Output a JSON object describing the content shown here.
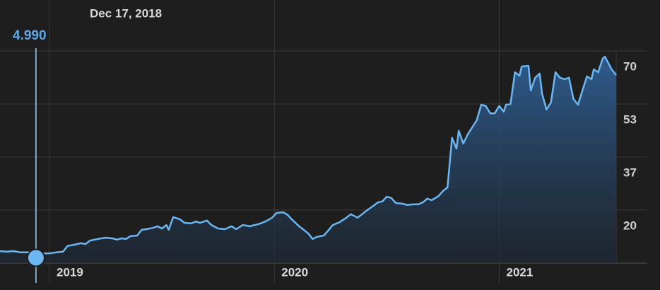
{
  "chart_data": {
    "type": "area-line",
    "selection": {
      "label": "Dec 17, 2018",
      "x": 2018.94,
      "value": 4.99,
      "value_label": "4.990"
    },
    "x": [
      2018.78,
      2018.81,
      2018.84,
      2018.87,
      2018.91,
      2018.94,
      2018.97,
      2019.0,
      2019.03,
      2019.06,
      2019.08,
      2019.11,
      2019.14,
      2019.16,
      2019.18,
      2019.2,
      2019.23,
      2019.25,
      2019.28,
      2019.3,
      2019.32,
      2019.34,
      2019.36,
      2019.39,
      2019.41,
      2019.43,
      2019.46,
      2019.48,
      2019.5,
      2019.52,
      2019.53,
      2019.55,
      2019.58,
      2019.6,
      2019.63,
      2019.65,
      2019.67,
      2019.7,
      2019.72,
      2019.75,
      2019.78,
      2019.81,
      2019.83,
      2019.86,
      2019.89,
      2019.93,
      2019.96,
      2019.99,
      2020.01,
      2020.04,
      2020.06,
      2020.08,
      2020.11,
      2020.15,
      2020.17,
      2020.19,
      2020.22,
      2020.24,
      2020.26,
      2020.29,
      2020.32,
      2020.34,
      2020.37,
      2020.39,
      2020.41,
      2020.44,
      2020.46,
      2020.48,
      2020.5,
      2020.52,
      2020.54,
      2020.57,
      2020.59,
      2020.62,
      2020.64,
      2020.66,
      2020.68,
      2020.7,
      2020.73,
      2020.75,
      2020.77,
      2020.79,
      2020.81,
      2020.82,
      2020.84,
      2020.86,
      2020.88,
      2020.9,
      2020.92,
      2020.94,
      2020.96,
      2020.98,
      2021.0,
      2021.02,
      2021.03,
      2021.05,
      2021.07,
      2021.09,
      2021.1,
      2021.13,
      2021.14,
      2021.16,
      2021.18,
      2021.19,
      2021.21,
      2021.23,
      2021.25,
      2021.27,
      2021.29,
      2021.31,
      2021.33,
      2021.35,
      2021.37,
      2021.39,
      2021.41,
      2021.42,
      2021.44,
      2021.46,
      2021.47,
      2021.5,
      2021.52
    ],
    "values": [
      7.1,
      6.9,
      7.1,
      6.7,
      6.7,
      4.99,
      6.4,
      6.4,
      6.7,
      6.9,
      8.7,
      9.1,
      9.6,
      9.3,
      10.4,
      10.7,
      11.1,
      11.3,
      11.1,
      10.7,
      11.1,
      10.9,
      11.8,
      12.0,
      13.8,
      14.0,
      14.4,
      14.9,
      14.2,
      15.3,
      13.8,
      17.8,
      17.1,
      16.0,
      15.8,
      16.4,
      16.0,
      16.7,
      15.3,
      14.2,
      14.0,
      14.9,
      14.0,
      15.3,
      14.9,
      15.6,
      16.4,
      17.6,
      19.1,
      19.3,
      18.4,
      16.9,
      14.9,
      12.7,
      10.9,
      11.6,
      12.0,
      13.6,
      15.3,
      16.2,
      17.6,
      18.7,
      17.6,
      18.7,
      19.8,
      21.3,
      22.4,
      22.7,
      24.2,
      23.8,
      22.2,
      22.0,
      21.6,
      21.8,
      21.8,
      22.4,
      23.6,
      23.1,
      24.4,
      26.0,
      27.1,
      42.7,
      39.3,
      44.9,
      40.9,
      43.8,
      46.0,
      48.2,
      53.1,
      52.7,
      50.4,
      50.4,
      52.7,
      50.9,
      53.1,
      53.3,
      63.3,
      62.2,
      65.1,
      65.3,
      57.6,
      61.6,
      62.9,
      56.7,
      51.6,
      53.8,
      63.3,
      61.6,
      61.1,
      61.6,
      54.9,
      53.1,
      57.6,
      62.0,
      61.1,
      64.2,
      63.3,
      67.6,
      68.2,
      64.2,
      62.4
    ],
    "color": "#6cb6f2",
    "xlim": [
      2018.78,
      2021.52
    ],
    "xticks": [
      2019,
      2020,
      2021
    ],
    "ylim": [
      3.33,
      86
    ],
    "yticks": [
      20,
      {
        "value": 36.67,
        "label": "37"
      },
      {
        "value": 53.33,
        "label": "53"
      },
      70
    ],
    "grid": true
  }
}
